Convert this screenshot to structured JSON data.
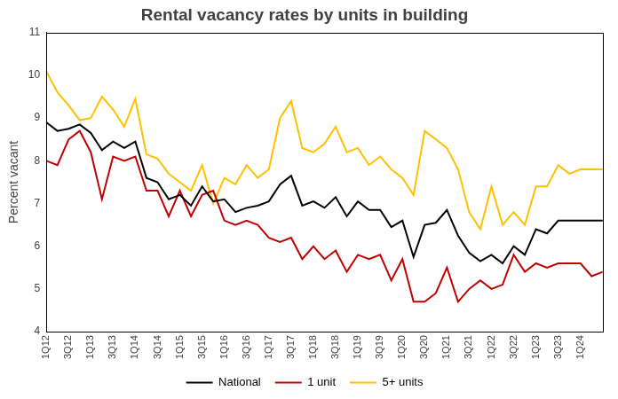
{
  "chart_data": {
    "type": "line",
    "title": "Rental vacancy rates by units in building",
    "y_label": "Percent vacant",
    "categories": [
      "1Q12",
      null,
      "3Q12",
      null,
      "1Q13",
      null,
      "3Q13",
      null,
      "1Q14",
      null,
      "3Q14",
      null,
      "1Q15",
      null,
      "3Q15",
      null,
      "1Q16",
      null,
      "3Q16",
      null,
      "1Q17",
      null,
      "3Q17",
      null,
      "1Q18",
      null,
      "3Q18",
      null,
      "1Q19",
      null,
      "3Q19",
      null,
      "1Q20",
      null,
      "3Q20",
      null,
      "1Q21",
      null,
      "3Q21",
      null,
      "1Q22",
      null,
      "3Q22",
      null,
      "1Q23",
      null,
      "3Q23",
      null,
      "1Q24",
      null,
      null
    ],
    "series": [
      {
        "name": "National",
        "color": "#000000",
        "values": [
          8.9,
          8.7,
          8.75,
          8.85,
          8.65,
          8.25,
          8.45,
          8.3,
          8.45,
          7.6,
          7.5,
          7.1,
          7.2,
          6.95,
          7.4,
          7.05,
          7.1,
          6.8,
          6.9,
          6.95,
          7.05,
          7.45,
          7.65,
          6.95,
          7.05,
          6.9,
          7.15,
          6.7,
          7.05,
          6.85,
          6.85,
          6.45,
          6.6,
          5.75,
          6.5,
          6.55,
          6.85,
          6.25,
          5.85,
          5.65,
          5.8,
          5.6,
          6.0,
          5.8,
          6.4,
          6.3,
          6.6,
          6.6,
          6.6,
          6.6,
          6.6
        ]
      },
      {
        "name": "1 unit",
        "color": "#c00000",
        "values": [
          8.0,
          7.9,
          8.5,
          8.7,
          8.2,
          7.1,
          8.1,
          8.0,
          8.1,
          7.3,
          7.3,
          6.7,
          7.3,
          6.7,
          7.2,
          7.3,
          6.6,
          6.5,
          6.6,
          6.5,
          6.2,
          6.1,
          6.2,
          5.7,
          6.0,
          5.7,
          5.9,
          5.4,
          5.8,
          5.7,
          5.8,
          5.2,
          5.7,
          4.7,
          4.7,
          4.9,
          5.5,
          4.7,
          5.0,
          5.2,
          5.0,
          5.1,
          5.8,
          5.4,
          5.6,
          5.5,
          5.6,
          5.6,
          5.6,
          5.3,
          5.4
        ]
      },
      {
        "name": "5+ units",
        "color": "#ffc000",
        "values": [
          10.1,
          9.6,
          9.3,
          8.95,
          9.0,
          9.5,
          9.2,
          8.8,
          9.45,
          8.15,
          8.05,
          7.7,
          7.5,
          7.3,
          7.9,
          7.0,
          7.6,
          7.45,
          7.9,
          7.6,
          7.8,
          9.0,
          9.4,
          8.3,
          8.2,
          8.4,
          8.8,
          8.2,
          8.3,
          7.9,
          8.1,
          7.8,
          7.6,
          7.2,
          8.7,
          8.5,
          8.3,
          7.8,
          6.8,
          6.4,
          7.4,
          6.5,
          6.8,
          6.5,
          7.4,
          7.4,
          7.9,
          7.7,
          7.8,
          7.8,
          7.8
        ]
      }
    ],
    "ylim": [
      4,
      11
    ],
    "yticks": [
      4,
      5,
      6,
      7,
      8,
      9,
      10,
      11
    ],
    "grid": false,
    "legend": "bottom"
  }
}
